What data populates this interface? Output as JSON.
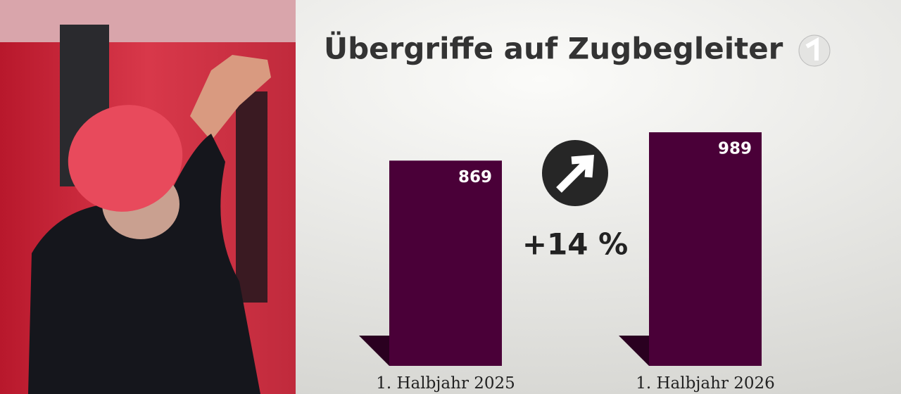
{
  "chart_data": {
    "type": "bar",
    "title": "Übergriffe auf Zugbegleiter",
    "categories": [
      "1. Halbjahr 2025",
      "1. Halbjahr 2026"
    ],
    "values": [
      869,
      989
    ],
    "color": "#4a0038",
    "annotation": "+14 %"
  }
}
